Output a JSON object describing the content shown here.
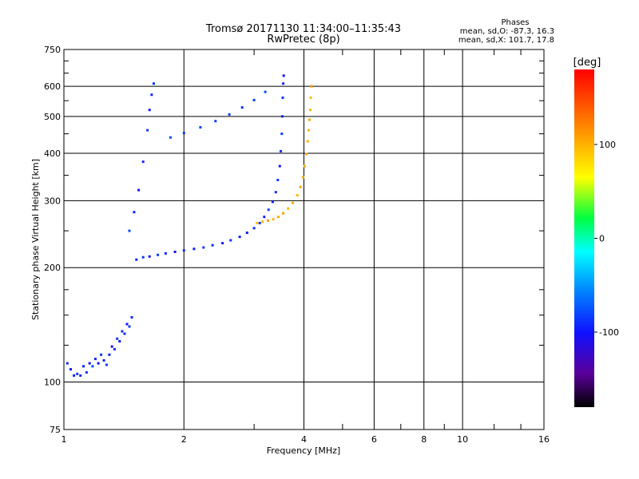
{
  "chart_data": {
    "type": "scatter",
    "title": "Tromsø 20171130 11:34:00–11:35:43",
    "subtitle": "RwPretec (8p)",
    "xlabel": "Frequency [MHz]",
    "ylabel": "Stationary phase Virtual Height [km]",
    "x_scale": "log",
    "y_scale": "log",
    "xlim": [
      1,
      16
    ],
    "ylim": [
      75,
      750
    ],
    "xticks": [
      1,
      2,
      4,
      6,
      8,
      10,
      16
    ],
    "xtick_labels": [
      "1",
      "2",
      "4",
      "6",
      "8",
      "10",
      "16"
    ],
    "yticks": [
      75,
      100,
      200,
      300,
      400,
      500,
      600,
      750
    ],
    "ytick_labels": [
      "75",
      "100",
      "200",
      "300",
      "400",
      "500",
      "600",
      "750"
    ],
    "grid": true,
    "phases_box": {
      "title": "Phases",
      "line1": "mean, sd,O: -87.3, 16.3",
      "line2": "mean, sd,X: 101.7, 17.8"
    },
    "colorbar": {
      "label": "[deg]",
      "range": [
        -180,
        180
      ],
      "ticks": [
        100,
        0,
        -100
      ],
      "tick_labels": [
        "100",
        "0",
        "-100"
      ]
    },
    "series": [
      {
        "trace": "O",
        "phase_mean": -87.3,
        "points": [
          [
            1.02,
            112,
            -90
          ],
          [
            1.04,
            108,
            -100
          ],
          [
            1.06,
            104,
            -95
          ],
          [
            1.08,
            105,
            -85
          ],
          [
            1.1,
            104,
            -92
          ],
          [
            1.12,
            110,
            -98
          ],
          [
            1.14,
            106,
            -88
          ],
          [
            1.16,
            112,
            -105
          ],
          [
            1.18,
            110,
            -80
          ],
          [
            1.2,
            115,
            -92
          ],
          [
            1.22,
            112,
            -100
          ],
          [
            1.24,
            118,
            -87
          ],
          [
            1.26,
            114,
            -95
          ],
          [
            1.28,
            111,
            -82
          ],
          [
            1.3,
            118,
            -96
          ],
          [
            1.32,
            124,
            -104
          ],
          [
            1.34,
            122,
            -90
          ],
          [
            1.36,
            130,
            -88
          ],
          [
            1.38,
            128,
            -99
          ],
          [
            1.4,
            136,
            -86
          ],
          [
            1.42,
            134,
            -93
          ],
          [
            1.44,
            142,
            -101
          ],
          [
            1.46,
            140,
            -84
          ],
          [
            1.48,
            148,
            -91
          ],
          [
            1.52,
            210,
            -95
          ],
          [
            1.58,
            213,
            -88
          ],
          [
            1.64,
            214,
            -97
          ],
          [
            1.72,
            216,
            -85
          ],
          [
            1.8,
            218,
            -92
          ],
          [
            1.9,
            220,
            -100
          ],
          [
            2.0,
            222,
            -89
          ],
          [
            2.12,
            224,
            -96
          ],
          [
            2.24,
            226,
            -84
          ],
          [
            2.36,
            229,
            -91
          ],
          [
            2.5,
            232,
            -99
          ],
          [
            2.62,
            236,
            -87
          ],
          [
            2.76,
            241,
            -94
          ],
          [
            2.88,
            247,
            -102
          ],
          [
            3.0,
            254,
            -90
          ],
          [
            3.1,
            262,
            -88
          ],
          [
            3.18,
            272,
            -95
          ],
          [
            3.26,
            284,
            -83
          ],
          [
            3.34,
            298,
            -97
          ],
          [
            3.4,
            316,
            -90
          ],
          [
            3.44,
            340,
            -86
          ],
          [
            3.48,
            370,
            -99
          ],
          [
            3.5,
            405,
            -92
          ],
          [
            3.52,
            450,
            -85
          ],
          [
            3.53,
            500,
            -96
          ],
          [
            3.54,
            560,
            -89
          ],
          [
            3.55,
            610,
            -93
          ],
          [
            3.56,
            640,
            -100
          ],
          [
            1.46,
            250,
            -80
          ],
          [
            1.5,
            280,
            -95
          ],
          [
            1.54,
            320,
            -105
          ],
          [
            1.58,
            380,
            -90
          ],
          [
            1.62,
            460,
            -85
          ],
          [
            1.64,
            520,
            -98
          ],
          [
            1.66,
            570,
            -92
          ],
          [
            1.68,
            610,
            -86
          ],
          [
            1.85,
            440,
            -78
          ],
          [
            2.0,
            452,
            -84
          ],
          [
            2.2,
            468,
            -80
          ],
          [
            2.4,
            486,
            -86
          ],
          [
            2.6,
            506,
            -82
          ],
          [
            2.8,
            528,
            -88
          ],
          [
            3.0,
            552,
            -84
          ],
          [
            3.2,
            580,
            -80
          ]
        ]
      },
      {
        "trace": "X",
        "phase_mean": 101.7,
        "points": [
          [
            3.05,
            262,
            95
          ],
          [
            3.15,
            264,
            102
          ],
          [
            3.25,
            266,
            108
          ],
          [
            3.35,
            268,
            98
          ],
          [
            3.45,
            272,
            104
          ],
          [
            3.55,
            278,
            110
          ],
          [
            3.65,
            286,
            96
          ],
          [
            3.75,
            296,
            103
          ],
          [
            3.85,
            310,
            99
          ],
          [
            3.92,
            326,
            106
          ],
          [
            3.98,
            346,
            100
          ],
          [
            4.02,
            370,
            94
          ],
          [
            4.06,
            398,
            108
          ],
          [
            4.09,
            430,
            102
          ],
          [
            4.11,
            460,
            97
          ],
          [
            4.13,
            490,
            105
          ],
          [
            4.15,
            520,
            100
          ],
          [
            4.16,
            560,
            96
          ],
          [
            4.18,
            600,
            110
          ]
        ]
      }
    ]
  }
}
